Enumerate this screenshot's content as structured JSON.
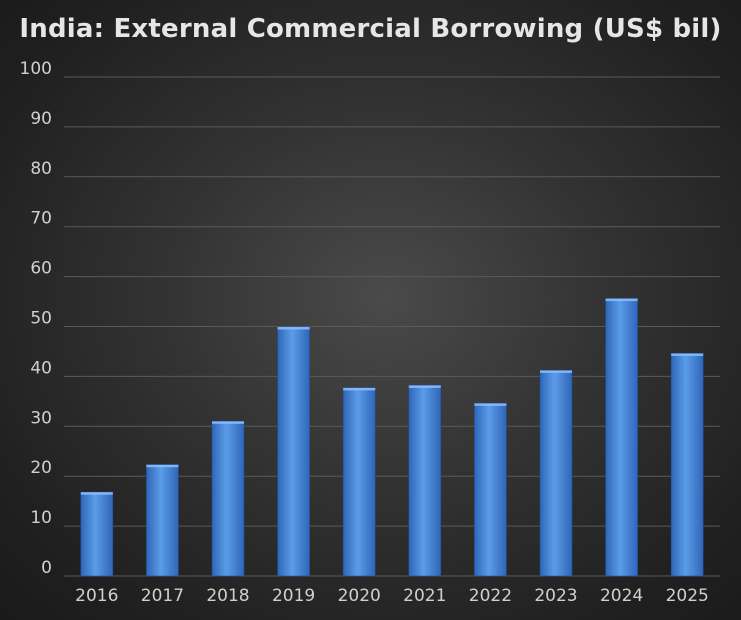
{
  "chart_data": {
    "type": "bar",
    "title": "India: External Commercial Borrowing (US$ bil)",
    "categories": [
      "2016",
      "2017",
      "2018",
      "2019",
      "2020",
      "2021",
      "2022",
      "2023",
      "2024",
      "2025"
    ],
    "values": [
      16.8,
      22.3,
      31.0,
      49.9,
      37.7,
      38.2,
      34.6,
      41.2,
      55.6,
      44.6
    ],
    "ylim": [
      0,
      100
    ],
    "yticks": [
      0,
      10,
      20,
      30,
      40,
      50,
      60,
      70,
      80,
      90,
      100
    ],
    "grid": true,
    "legend": "none",
    "colors": {
      "bar_top": "#5b9ce8",
      "bar_bottom": "#2f66b8",
      "grid": "#5a5a5a",
      "text": "#d0d0d0",
      "title": "#e6e6e6"
    }
  }
}
